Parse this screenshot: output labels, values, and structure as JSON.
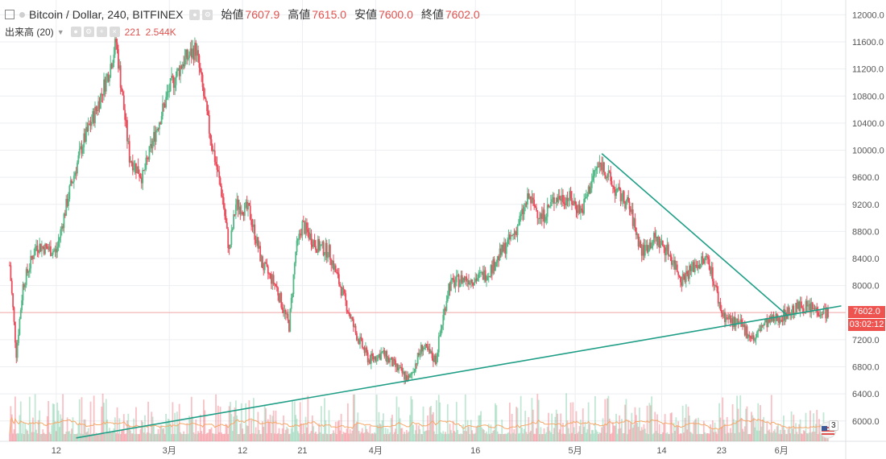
{
  "header": {
    "symbol": "Bitcoin / Dollar, 240, BITFINEX",
    "ohlc": [
      {
        "label": "始値",
        "value": "7607.9"
      },
      {
        "label": "高値",
        "value": "7615.0"
      },
      {
        "label": "安値",
        "value": "7600.0"
      },
      {
        "label": "終値",
        "value": "7602.0"
      }
    ],
    "volume_label": "出来高 (20)",
    "volume_value_1": "221",
    "volume_value_2": "2.544K"
  },
  "price_tag": "7602.0",
  "countdown_tag": "03:02:12",
  "colors": {
    "up": "#53b987",
    "down": "#eb4d5c",
    "trendline": "#1f9e86",
    "price_tag": "#ef5350",
    "countdown_tag": "#ef5350",
    "volume_ma": "#f5a86b",
    "grid": "#eceef1"
  },
  "flag_badge": "3",
  "chart_data": {
    "type": "candlestick",
    "ylim": [
      5700,
      12100
    ],
    "y_ticks": [
      6000,
      6400,
      6800,
      7200,
      7600,
      8000,
      8400,
      8800,
      9200,
      9600,
      10000,
      10400,
      10800,
      11200,
      11600,
      12000
    ],
    "y_tick_labels": [
      "6000.0",
      "6400.0",
      "6800.0",
      "7200.0",
      "7600.0",
      "8000.0",
      "8400.0",
      "8800.0",
      "9200.0",
      "9600.0",
      "10000.0",
      "10400.0",
      "10800.0",
      "11200.0",
      "11600.0",
      "12000.0"
    ],
    "x_ticks": [
      {
        "label": "12",
        "date": "2018-02-12"
      },
      {
        "label": "3月",
        "date": "2018-03-01"
      },
      {
        "label": "12",
        "date": "2018-03-12"
      },
      {
        "label": "21",
        "date": "2018-03-21"
      },
      {
        "label": "4月",
        "date": "2018-04-01"
      },
      {
        "label": "16",
        "date": "2018-04-16"
      },
      {
        "label": "5月",
        "date": "2018-05-01"
      },
      {
        "label": "14",
        "date": "2018-05-14"
      },
      {
        "label": "23",
        "date": "2018-05-23"
      },
      {
        "label": "6月",
        "date": "2018-06-01"
      }
    ],
    "x_range": [
      "2018-02-05",
      "2018-06-08"
    ],
    "close_path": [
      [
        "2018-02-05",
        8300
      ],
      [
        "2018-02-06",
        7000
      ],
      [
        "2018-02-07",
        8000
      ],
      [
        "2018-02-09",
        8600
      ],
      [
        "2018-02-12",
        8500
      ],
      [
        "2018-02-14",
        9400
      ],
      [
        "2018-02-16",
        10100
      ],
      [
        "2018-02-18",
        10600
      ],
      [
        "2018-02-20",
        11200
      ],
      [
        "2018-02-21",
        11600
      ],
      [
        "2018-02-23",
        9900
      ],
      [
        "2018-02-25",
        9600
      ],
      [
        "2018-02-27",
        10300
      ],
      [
        "2018-03-01",
        10900
      ],
      [
        "2018-03-03",
        11300
      ],
      [
        "2018-03-05",
        11500
      ],
      [
        "2018-03-07",
        10300
      ],
      [
        "2018-03-09",
        9300
      ],
      [
        "2018-03-10",
        8500
      ],
      [
        "2018-03-11",
        9200
      ],
      [
        "2018-03-13",
        9100
      ],
      [
        "2018-03-15",
        8300
      ],
      [
        "2018-03-17",
        8000
      ],
      [
        "2018-03-19",
        7400
      ],
      [
        "2018-03-20",
        8500
      ],
      [
        "2018-03-21",
        8900
      ],
      [
        "2018-03-23",
        8600
      ],
      [
        "2018-03-25",
        8500
      ],
      [
        "2018-03-27",
        7900
      ],
      [
        "2018-03-29",
        7300
      ],
      [
        "2018-03-31",
        6900
      ],
      [
        "2018-04-02",
        7000
      ],
      [
        "2018-04-04",
        6800
      ],
      [
        "2018-04-06",
        6600
      ],
      [
        "2018-04-08",
        7100
      ],
      [
        "2018-04-10",
        6900
      ],
      [
        "2018-04-12",
        8000
      ],
      [
        "2018-04-14",
        8100
      ],
      [
        "2018-04-16",
        8100
      ],
      [
        "2018-04-18",
        8200
      ],
      [
        "2018-04-20",
        8500
      ],
      [
        "2018-04-22",
        8800
      ],
      [
        "2018-04-24",
        9300
      ],
      [
        "2018-04-26",
        9000
      ],
      [
        "2018-04-28",
        9300
      ],
      [
        "2018-04-30",
        9300
      ],
      [
        "2018-05-02",
        9100
      ],
      [
        "2018-05-04",
        9700
      ],
      [
        "2018-05-05",
        9800
      ],
      [
        "2018-05-07",
        9400
      ],
      [
        "2018-05-09",
        9200
      ],
      [
        "2018-05-11",
        8500
      ],
      [
        "2018-05-13",
        8700
      ],
      [
        "2018-05-15",
        8500
      ],
      [
        "2018-05-17",
        8100
      ],
      [
        "2018-05-19",
        8300
      ],
      [
        "2018-05-21",
        8400
      ],
      [
        "2018-05-23",
        7600
      ],
      [
        "2018-05-24",
        7500
      ],
      [
        "2018-05-26",
        7400
      ],
      [
        "2018-05-28",
        7200
      ],
      [
        "2018-05-29",
        7400
      ],
      [
        "2018-05-31",
        7500
      ],
      [
        "2018-06-02",
        7600
      ],
      [
        "2018-06-04",
        7700
      ],
      [
        "2018-06-06",
        7650
      ],
      [
        "2018-06-08",
        7602
      ]
    ],
    "trendlines": [
      {
        "from": [
          "2018-02-15",
          5750
        ],
        "to": [
          "2018-06-10",
          7700
        ]
      },
      {
        "from": [
          "2018-05-05",
          9950
        ],
        "to": [
          "2018-06-02",
          7550
        ]
      }
    ],
    "current_price_line": 7602
  }
}
